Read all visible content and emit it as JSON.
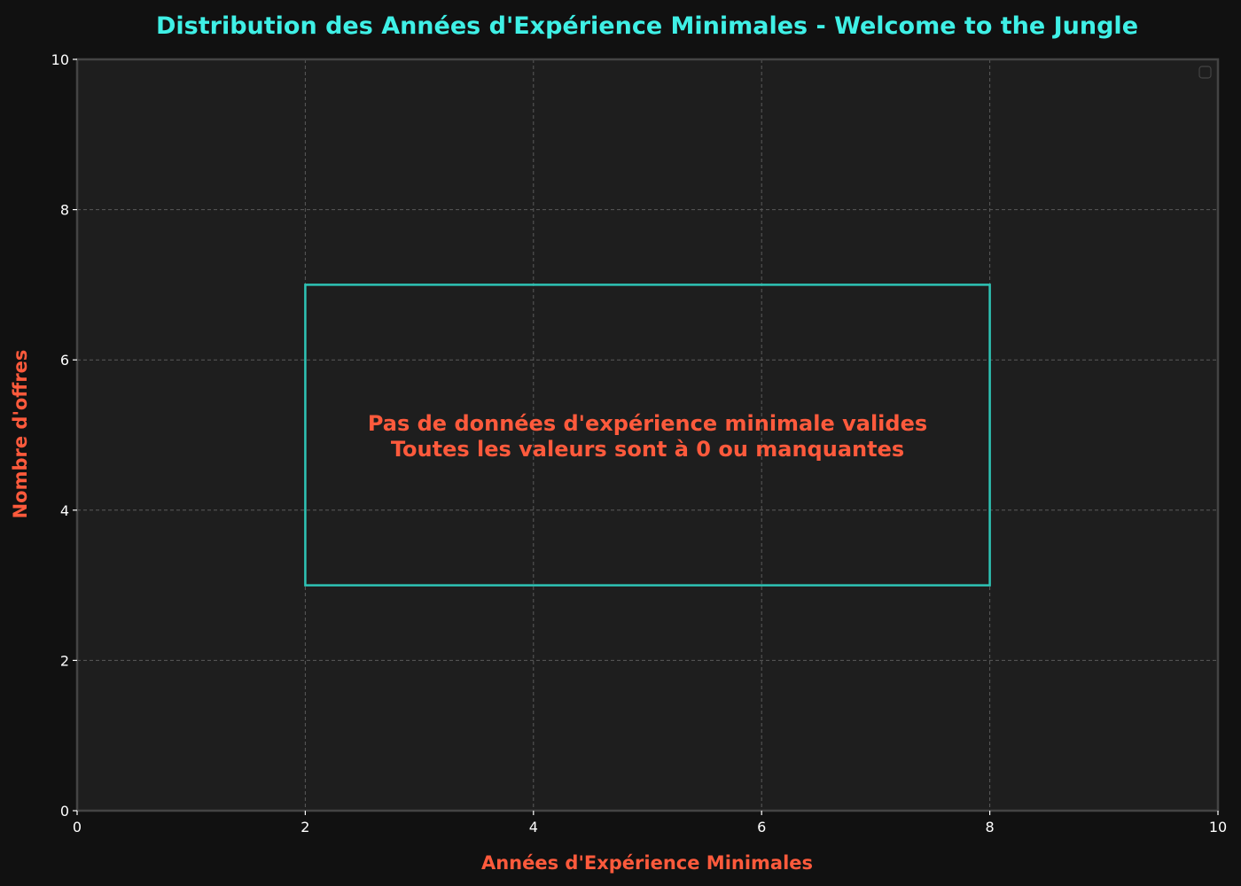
{
  "chart_data": {
    "type": "bar",
    "title": "Distribution des Années d'Expérience Minimales - Welcome to the Jungle",
    "xlabel": "Années d'Expérience Minimales",
    "ylabel": "Nombre d'offres",
    "xlim": [
      0,
      10
    ],
    "ylim": [
      0,
      10
    ],
    "xticks": [
      0,
      2,
      4,
      6,
      8,
      10
    ],
    "yticks": [
      0,
      2,
      4,
      6,
      8,
      10
    ],
    "grid": true,
    "legend": "top-right",
    "series": [],
    "annotation": {
      "lines": [
        "Pas de données d'expérience minimale valides",
        "Toutes les valeurs sont à 0 ou manquantes"
      ],
      "box": {
        "x0": 2,
        "x1": 8,
        "y0": 3,
        "y1": 7
      }
    },
    "colors": {
      "background": "#111111",
      "plot_background": "#1e1e1e",
      "title": "#3ff0e6",
      "axis_label": "#ff5a3c",
      "message": "#ff5a3c",
      "box_border": "#2ec4b6",
      "grid": "#5a5a5a",
      "spine": "#444444",
      "tick": "#ffffff"
    }
  }
}
